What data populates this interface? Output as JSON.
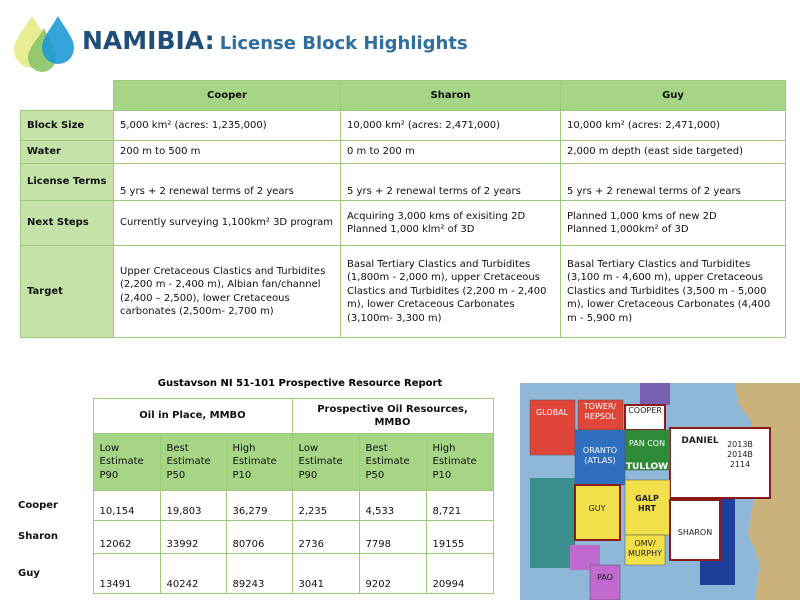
{
  "header": {
    "title": "NAMIBIA:",
    "subtitle": "License Block Highlights"
  },
  "license_table": {
    "columns": [
      "Cooper",
      "Sharon",
      "Guy"
    ],
    "rows": [
      {
        "label": "Block Size",
        "cells": [
          "5,000 km² (acres: 1,235,000)",
          "10,000 km² (acres: 2,471,000)",
          "10,000 km² (acres: 2,471,000)"
        ]
      },
      {
        "label": "Water",
        "cells": [
          "200 m to 500 m",
          "0 m to 200 m",
          "2,000 m depth (east side targeted)"
        ]
      },
      {
        "label": "License Terms",
        "cells": [
          "5 yrs + 2 renewal terms of 2 years",
          "5 yrs + 2 renewal terms of 2 years",
          "5 yrs + 2 renewal terms of 2 years"
        ]
      },
      {
        "label": "Next Steps",
        "cells": [
          "Currently surveying 1,100km² 3D program",
          "Acquiring 3,000 kms of exisiting 2D\nPlanned 1,000 klm² of 3D",
          "Planned 1,000 kms of new 2D\nPlanned 1,000km² of 3D"
        ]
      },
      {
        "label": "Target",
        "cells": [
          "Upper Cretaceous Clastics and Turbidites (2,200 m - 2,400 m), Albian fan/channel (2,400 – 2,500), lower Cretaceous carbonates (2,500m- 2,700 m)",
          "Basal Tertiary Clastics and Turbidites (1,800m  - 2,000 m), upper Cretaceous Clastics and Turbidites (2,200 m - 2,400 m), lower Cretaceous Carbonates (3,100m- 3,300 m)",
          "Basal Tertiary Clastics and Turbidites (3,100 m - 4,600 m), upper Cretaceous Clastics and Turbidites (3,500 m - 5,000 m), lower Cretaceous Carbonates (4,400 m - 5,900 m)"
        ]
      }
    ]
  },
  "resource_table": {
    "title": "Gustavson NI 51-101  Prospective Resource Report",
    "groups": [
      "Oil in Place, MMBO",
      "Prospective Oil Resources, MMBO"
    ],
    "subheaders": [
      "Low\nEstimate\nP90",
      "Best\nEstimate\nP50",
      "High\nEstimate\nP10",
      "Low\nEstimate\nP90",
      "Best\nEstimate\nP50",
      "High\nEstimate\nP10"
    ],
    "rows": [
      {
        "label": "Cooper",
        "cells": [
          "10,154",
          "19,803",
          "36,279",
          "2,235",
          "4,533",
          "8,721"
        ]
      },
      {
        "label": "Sharon",
        "cells": [
          "12062",
          "33992",
          "80706",
          "2736",
          "7798",
          "19155"
        ]
      },
      {
        "label": "Guy",
        "cells": [
          "13491",
          "40242",
          "89243",
          "3041",
          "9202",
          "20994"
        ]
      }
    ]
  },
  "map": {
    "labels": [
      "GLOBAL",
      "TOWER/\nREPSOL",
      "COOPER",
      "DANIEL",
      "2013B\n2014B\n2114",
      "ORANTO\n(ATLAS)",
      "PAN CON",
      "TULLOW",
      "GUY",
      "GALP\nHRT",
      "SHARON",
      "OMV/\nMURPHY",
      "PAO"
    ]
  }
}
